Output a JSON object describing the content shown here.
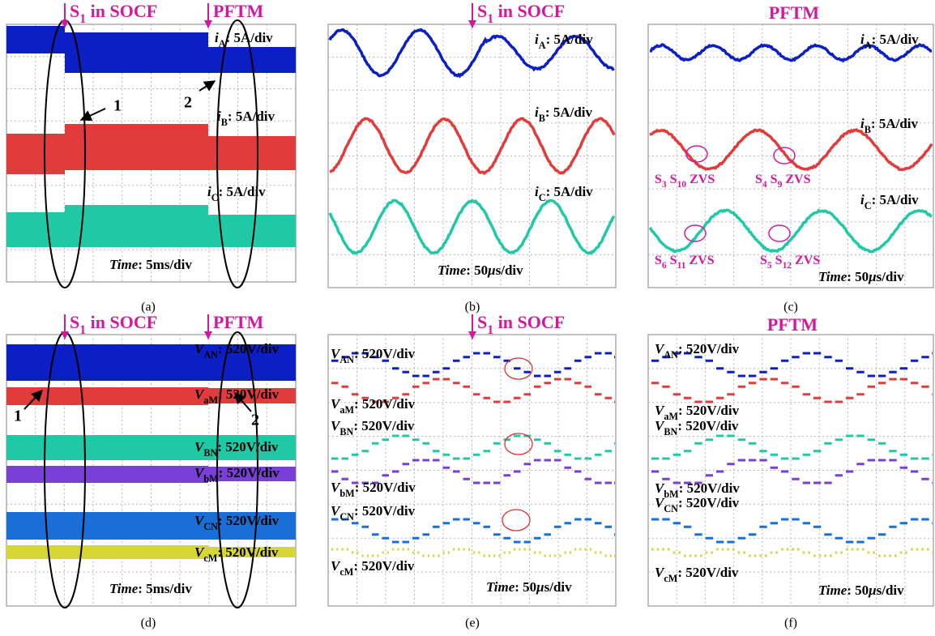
{
  "panels": [
    {
      "label": "(a)",
      "headers": [
        [
          {
            "text": "S"
          },
          {
            "sub": "1"
          },
          {
            "text": " in SOCF"
          }
        ],
        [
          {
            "text": "PFTM"
          }
        ]
      ],
      "channels": [
        [
          {
            "italic": "i"
          },
          {
            "sub": "A"
          },
          {
            "text": ": 5A/div"
          }
        ],
        [
          {
            "italic": "i"
          },
          {
            "sub": "B"
          },
          {
            "text": ": 5A/div"
          }
        ],
        [
          {
            "italic": "i"
          },
          {
            "sub": "C"
          },
          {
            "text": ": 5A/div"
          }
        ]
      ],
      "time": [
        {
          "italic": "Time"
        },
        {
          "text": ": 5ms/div"
        }
      ],
      "markers": [
        "1",
        "2"
      ]
    },
    {
      "label": "(b)",
      "headers": [
        [
          {
            "text": "S"
          },
          {
            "sub": "1"
          },
          {
            "text": " in SOCF"
          }
        ]
      ],
      "channels": [
        [
          {
            "italic": "i"
          },
          {
            "sub": "A"
          },
          {
            "text": ": 5A/div"
          }
        ],
        [
          {
            "italic": "i"
          },
          {
            "sub": "B"
          },
          {
            "text": ": 5A/div"
          }
        ],
        [
          {
            "italic": "i"
          },
          {
            "sub": "C"
          },
          {
            "text": ": 5A/div"
          }
        ]
      ],
      "time": [
        {
          "italic": "Time"
        },
        {
          "text": ": 50"
        },
        {
          "italic": "μ"
        },
        {
          "text": "s/div"
        }
      ]
    },
    {
      "label": "(c)",
      "headers": [
        [
          {
            "text": "PFTM"
          }
        ]
      ],
      "channels": [
        [
          {
            "italic": "i"
          },
          {
            "sub": "A"
          },
          {
            "text": ": 5A/div"
          }
        ],
        [
          {
            "italic": "i"
          },
          {
            "sub": "B"
          },
          {
            "text": ": 5A/div"
          }
        ],
        [
          {
            "italic": "i"
          },
          {
            "sub": "C"
          },
          {
            "text": ": 5A/div"
          }
        ]
      ],
      "time": [
        {
          "italic": "Time"
        },
        {
          "text": ": 50"
        },
        {
          "italic": "μ"
        },
        {
          "text": "s/div"
        }
      ],
      "notes": [
        [
          {
            "text": "S"
          },
          {
            "sub": "3"
          },
          {
            "text": " S"
          },
          {
            "sub": "10"
          },
          {
            "text": " ZVS"
          }
        ],
        [
          {
            "text": "S"
          },
          {
            "sub": "4"
          },
          {
            "text": " S"
          },
          {
            "sub": "9"
          },
          {
            "text": " ZVS"
          }
        ],
        [
          {
            "text": "S"
          },
          {
            "sub": "6"
          },
          {
            "text": " S"
          },
          {
            "sub": "11"
          },
          {
            "text": " ZVS"
          }
        ],
        [
          {
            "text": "S"
          },
          {
            "sub": "5"
          },
          {
            "text": " S"
          },
          {
            "sub": "12"
          },
          {
            "text": " ZVS"
          }
        ]
      ]
    },
    {
      "label": "(d)",
      "headers": [
        [
          {
            "text": "S"
          },
          {
            "sub": "1"
          },
          {
            "text": " in SOCF"
          }
        ],
        [
          {
            "text": "PFTM"
          }
        ]
      ],
      "channels": [
        [
          {
            "italic": "V"
          },
          {
            "sub": "AN"
          },
          {
            "text": ": 520V/div"
          }
        ],
        [
          {
            "italic": "V"
          },
          {
            "sub": "aM"
          },
          {
            "text": ": 520V/div"
          }
        ],
        [
          {
            "italic": "V"
          },
          {
            "sub": "BN"
          },
          {
            "text": ": 520V/div"
          }
        ],
        [
          {
            "italic": "V"
          },
          {
            "sub": "bM"
          },
          {
            "text": ": 520V/div"
          }
        ],
        [
          {
            "italic": "V"
          },
          {
            "sub": "CN"
          },
          {
            "text": ": 520V/div"
          }
        ],
        [
          {
            "italic": "V"
          },
          {
            "sub": "cM"
          },
          {
            "text": ": 520V/div"
          }
        ]
      ],
      "time": [
        {
          "italic": "Time"
        },
        {
          "text": ": 5ms/div"
        }
      ],
      "markers": [
        "1",
        "2"
      ]
    },
    {
      "label": "(e)",
      "headers": [
        [
          {
            "text": "S"
          },
          {
            "sub": "1"
          },
          {
            "text": " in SOCF"
          }
        ]
      ],
      "channels": [
        [
          {
            "italic": "V"
          },
          {
            "sub": "AN"
          },
          {
            "text": ": 520V/div"
          }
        ],
        [
          {
            "italic": "V"
          },
          {
            "sub": "aM"
          },
          {
            "text": ": 520V/div"
          }
        ],
        [
          {
            "italic": "V"
          },
          {
            "sub": "BN"
          },
          {
            "text": ": 520V/div"
          }
        ],
        [
          {
            "italic": "V"
          },
          {
            "sub": "bM"
          },
          {
            "text": ": 520V/div"
          }
        ],
        [
          {
            "italic": "V"
          },
          {
            "sub": "CN"
          },
          {
            "text": ": 520V/div"
          }
        ],
        [
          {
            "italic": "V"
          },
          {
            "sub": "cM"
          },
          {
            "text": ": 520V/div"
          }
        ]
      ],
      "time": [
        {
          "italic": "Time"
        },
        {
          "text": ": 50"
        },
        {
          "italic": "μ"
        },
        {
          "text": "s/div"
        }
      ]
    },
    {
      "label": "(f)",
      "headers": [
        [
          {
            "text": "PFTM"
          }
        ]
      ],
      "channels": [
        [
          {
            "italic": "V"
          },
          {
            "sub": "AN"
          },
          {
            "text": ": 520V/div"
          }
        ],
        [
          {
            "italic": "V"
          },
          {
            "sub": "aM"
          },
          {
            "text": ": 520V/div"
          }
        ],
        [
          {
            "italic": "V"
          },
          {
            "sub": "BN"
          },
          {
            "text": ": 520V/div"
          }
        ],
        [
          {
            "italic": "V"
          },
          {
            "sub": "bM"
          },
          {
            "text": ": 520V/div"
          }
        ],
        [
          {
            "italic": "V"
          },
          {
            "sub": "CN"
          },
          {
            "text": ": 520V/div"
          }
        ],
        [
          {
            "italic": "V"
          },
          {
            "sub": "cM"
          },
          {
            "text": ": 520V/div"
          }
        ]
      ],
      "time": [
        {
          "italic": "Time"
        },
        {
          "text": ": 50"
        },
        {
          "italic": "μ"
        },
        {
          "text": "s/div"
        }
      ]
    }
  ]
}
